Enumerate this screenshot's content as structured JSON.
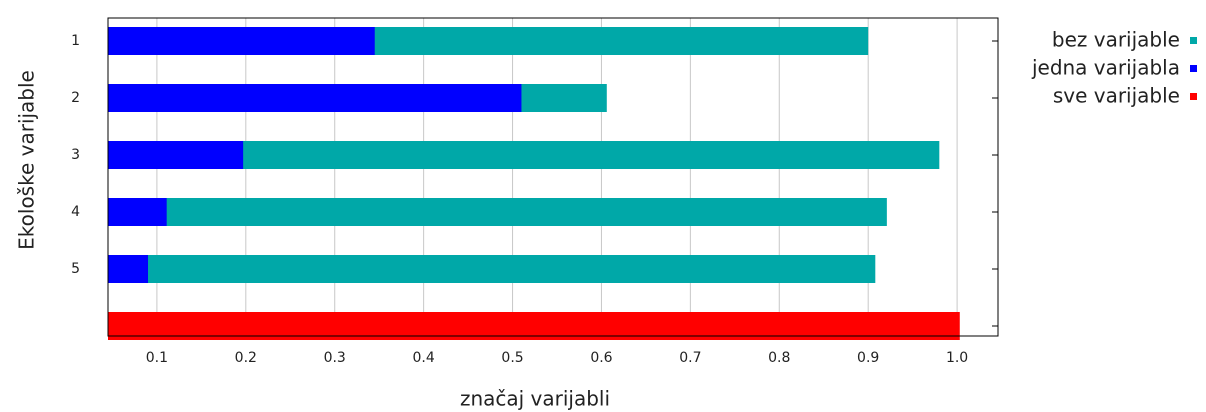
{
  "chart_data": {
    "type": "bar",
    "orientation": "horizontal",
    "y_label": "Ekološke varijable",
    "x_label": "značaj varijabli",
    "categories": [
      "1",
      "2",
      "3",
      "4",
      "5",
      null
    ],
    "series": [
      {
        "name": "bez varijable",
        "color": "#00a8a8",
        "values": [
          0.9,
          0.606,
          0.98,
          0.921,
          0.908,
          null
        ]
      },
      {
        "name": "jedna varijabla",
        "color": "#0000ff",
        "values": [
          0.345,
          0.51,
          0.197,
          0.111,
          0.09,
          null
        ]
      },
      {
        "name": "sve varijable",
        "color": "#ff0000",
        "values": [
          null,
          null,
          null,
          null,
          null,
          1.003
        ]
      }
    ],
    "xlim": [
      0.045,
      1.046
    ],
    "xticks": [
      0.1,
      0.2,
      0.3,
      0.4,
      0.5,
      0.6,
      0.7,
      0.8,
      0.9,
      {
        "value": 1,
        "label": "1.0"
      }
    ],
    "grid": true,
    "legend": "right"
  }
}
